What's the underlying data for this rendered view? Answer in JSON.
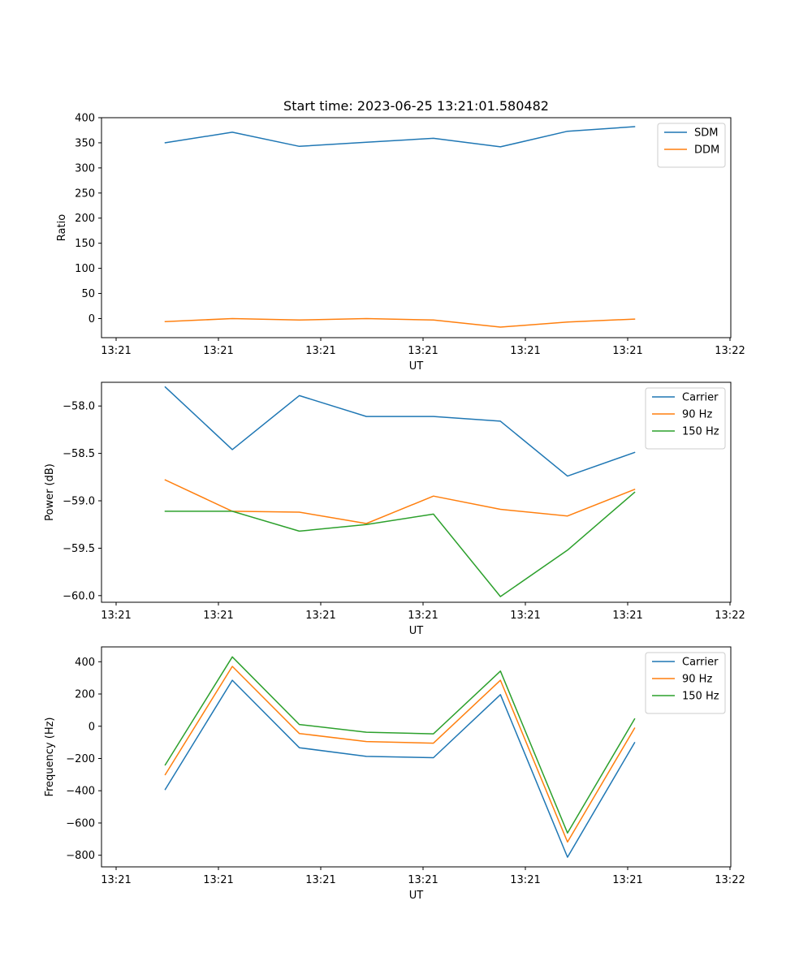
{
  "title": "Start time: 2023-06-25 13:21:01.580482",
  "chart_data": [
    {
      "type": "line",
      "xlabel": "UT",
      "ylabel": "Ratio",
      "x_tick_labels": [
        "13:21",
        "13:21",
        "13:21",
        "13:21",
        "13:21",
        "13:21",
        "13:22"
      ],
      "y_ticks": [
        0,
        50,
        100,
        150,
        200,
        250,
        300,
        350,
        400
      ],
      "ylim": [
        -38,
        400
      ],
      "legend": "top-right",
      "series": [
        {
          "name": "SDM",
          "color": "#1f77b4",
          "values": [
            350,
            371,
            343,
            351,
            359,
            342,
            373,
            382
          ]
        },
        {
          "name": "DDM",
          "color": "#ff7f0e",
          "values": [
            -6,
            0,
            -3,
            0,
            -3,
            -17,
            -7,
            -1
          ]
        }
      ]
    },
    {
      "type": "line",
      "xlabel": "UT",
      "ylabel": "Power (dB)",
      "x_tick_labels": [
        "13:21",
        "13:21",
        "13:21",
        "13:21",
        "13:21",
        "13:21",
        "13:22"
      ],
      "y_ticks": [
        -58.0,
        -58.5,
        -59.0,
        -59.5,
        -60.0
      ],
      "y_tick_labels": [
        "−58.0",
        "−58.5",
        "−59.0",
        "−59.5",
        "−60.0"
      ],
      "ylim": [
        -60.07,
        -57.75
      ],
      "legend": "top-right",
      "series": [
        {
          "name": "Carrier",
          "color": "#1f77b4",
          "values": [
            -57.8,
            -58.46,
            -57.89,
            -58.11,
            -58.11,
            -58.16,
            -58.74,
            -58.49
          ]
        },
        {
          "name": "90 Hz",
          "color": "#ff7f0e",
          "values": [
            -58.78,
            -59.11,
            -59.12,
            -59.24,
            -58.95,
            -59.09,
            -59.16,
            -58.88
          ]
        },
        {
          "name": "150 Hz",
          "color": "#2ca02c",
          "values": [
            -59.11,
            -59.11,
            -59.32,
            -59.25,
            -59.14,
            -60.01,
            -59.52,
            -58.91
          ]
        }
      ]
    },
    {
      "type": "line",
      "xlabel": "UT",
      "ylabel": "Frequency (Hz)",
      "x_tick_labels": [
        "13:21",
        "13:21",
        "13:21",
        "13:21",
        "13:21",
        "13:21",
        "13:22"
      ],
      "y_ticks": [
        400,
        200,
        0,
        -200,
        -400,
        -600,
        -800
      ],
      "y_tick_labels": [
        "400",
        "200",
        "0",
        "−200",
        "−400",
        "−600",
        "−800"
      ],
      "ylim": [
        -872,
        492
      ],
      "legend": "top-right",
      "series": [
        {
          "name": "Carrier",
          "color": "#1f77b4",
          "values": [
            -392,
            285,
            -133,
            -187,
            -195,
            196,
            -812,
            -102
          ]
        },
        {
          "name": "90 Hz",
          "color": "#ff7f0e",
          "values": [
            -300,
            371,
            -45,
            -95,
            -105,
            285,
            -718,
            -12
          ]
        },
        {
          "name": "150 Hz",
          "color": "#2ca02c",
          "values": [
            -240,
            430,
            11,
            -37,
            -47,
            342,
            -662,
            45
          ]
        }
      ]
    }
  ]
}
